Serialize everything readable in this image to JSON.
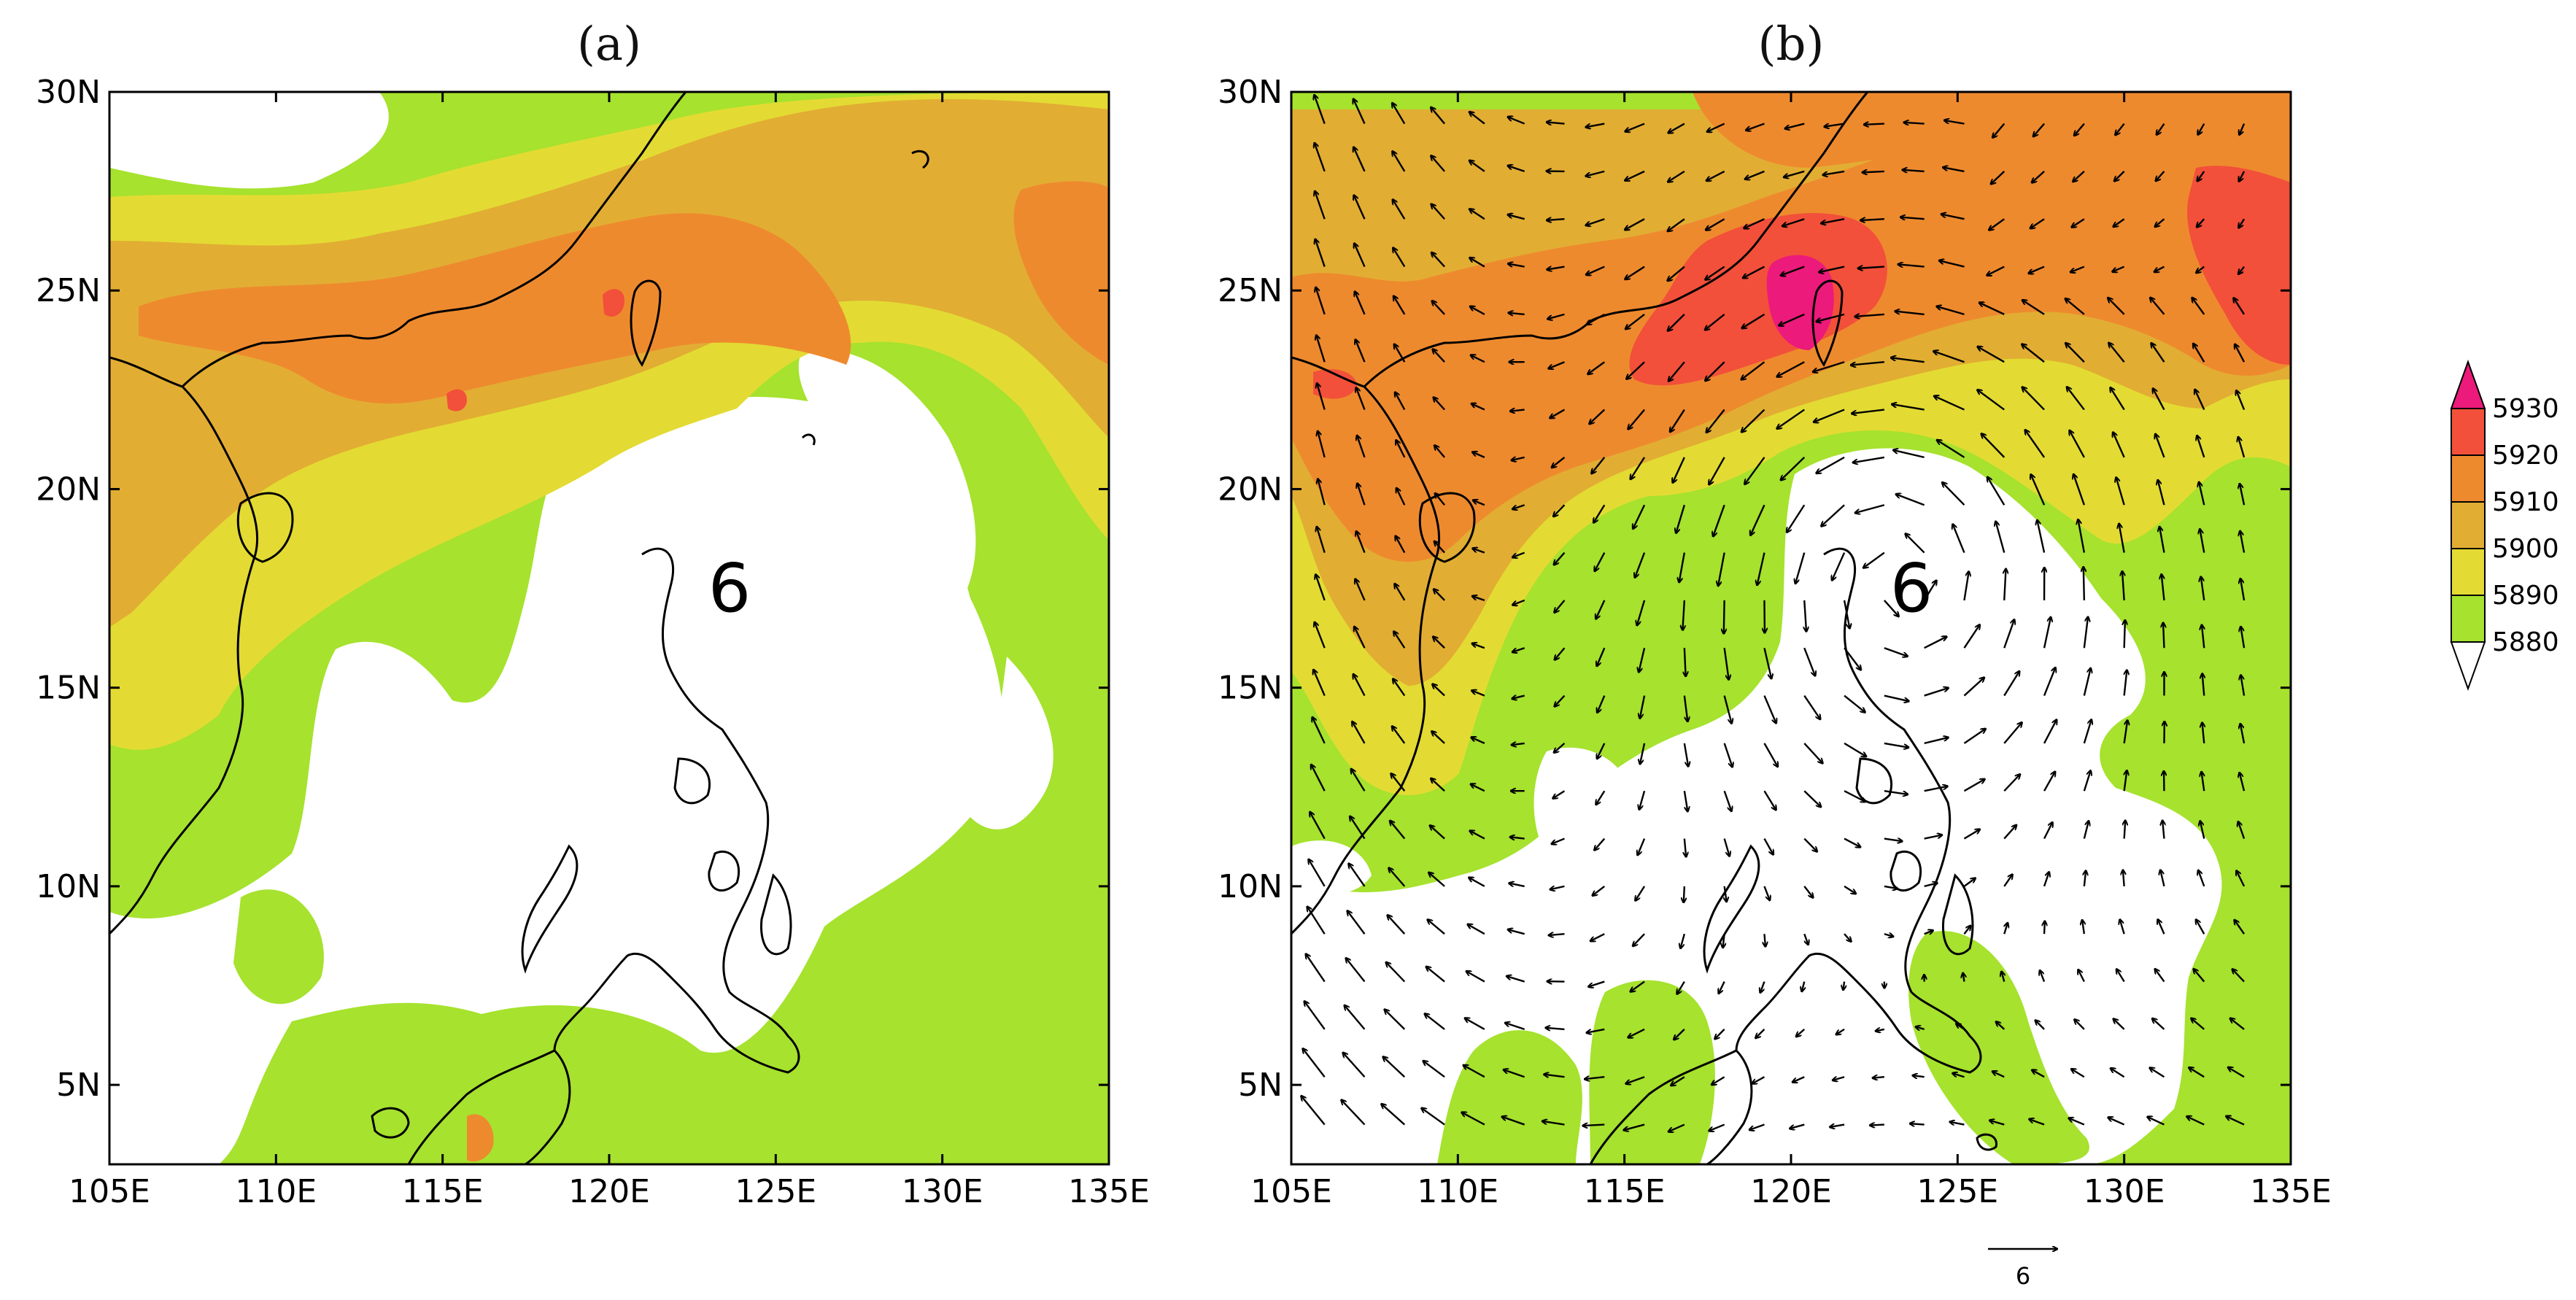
{
  "figure": {
    "colors": {
      "white": "#ffffff",
      "green": "#a6e22e",
      "yellow": "#e3db33",
      "gold": "#e2ad33",
      "orange": "#ee8a2e",
      "red": "#f2503a",
      "magenta": "#ec1a7a",
      "coast": "#000000"
    },
    "colorbar": {
      "levels": [
        "5880",
        "5890",
        "5900",
        "5910",
        "5920",
        "5930"
      ],
      "fills": [
        "#ffffff",
        "#a6e22e",
        "#e3db33",
        "#e2ad33",
        "#ee8a2e",
        "#f2503a",
        "#ec1a7a"
      ]
    },
    "panels": [
      {
        "id": "a",
        "title": "(a)",
        "storm_symbol": "6",
        "storm_position": [
          123.3,
          17.8
        ],
        "has_wind": false
      },
      {
        "id": "b",
        "title": "(b)",
        "storm_symbol": "6",
        "storm_position": [
          123.3,
          17.8
        ],
        "has_wind": true,
        "reference_vector": {
          "label": "6"
        }
      }
    ],
    "axes": {
      "lon_range": [
        105,
        135
      ],
      "lat_range": [
        3,
        30
      ],
      "x_ticks": [
        "105E",
        "110E",
        "115E",
        "120E",
        "125E",
        "130E",
        "135E"
      ],
      "y_ticks": [
        "5N",
        "10N",
        "15N",
        "20N",
        "25N",
        "30N"
      ]
    }
  }
}
